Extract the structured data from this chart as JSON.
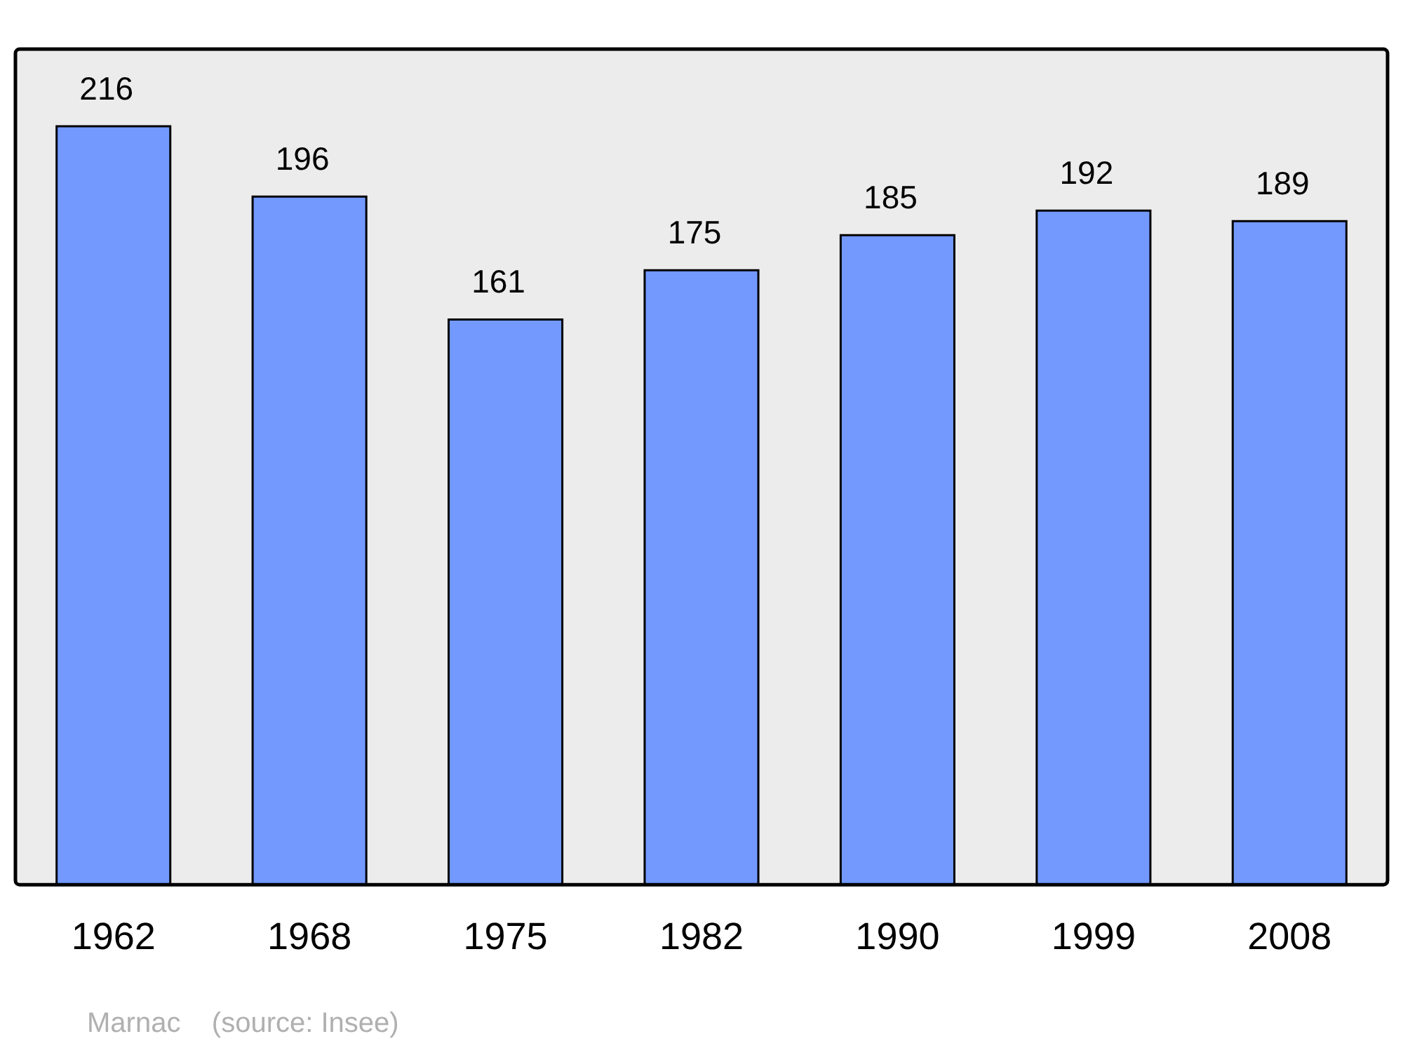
{
  "chart_data": {
    "type": "bar",
    "categories": [
      "1962",
      "1968",
      "1975",
      "1982",
      "1990",
      "1999",
      "2008"
    ],
    "values": [
      216,
      196,
      161,
      175,
      185,
      192,
      189
    ],
    "color": "#7399ff",
    "ylim": [
      0,
      238
    ],
    "tick_labels": "x",
    "grid": false,
    "data_labels": true,
    "legend": false,
    "annotations": [
      "Marnac    (source: Insee)"
    ]
  }
}
